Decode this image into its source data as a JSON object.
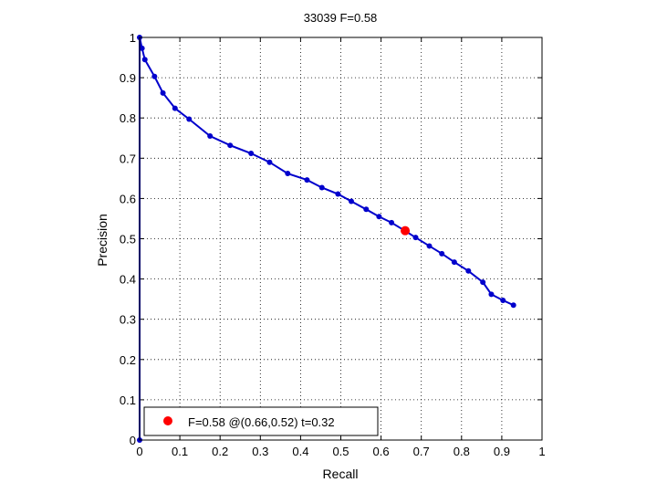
{
  "chart_data": {
    "type": "line",
    "title": "33039 F=0.58",
    "xlabel": "Recall",
    "ylabel": "Precision",
    "xlim": [
      0,
      1
    ],
    "ylim": [
      0,
      1
    ],
    "grid": true,
    "xticks": [
      "0",
      "0.1",
      "0.2",
      "0.3",
      "0.4",
      "0.5",
      "0.6",
      "0.7",
      "0.8",
      "0.9",
      "1"
    ],
    "yticks": [
      "0",
      "0.1",
      "0.2",
      "0.3",
      "0.4",
      "0.5",
      "0.6",
      "0.7",
      "0.8",
      "0.9",
      "1"
    ],
    "series": [
      {
        "color": "#0000cc",
        "x": [
          0.0,
          0.0,
          0.006,
          0.013,
          0.037,
          0.058,
          0.088,
          0.123,
          0.175,
          0.225,
          0.277,
          0.323,
          0.368,
          0.416,
          0.453,
          0.493,
          0.526,
          0.563,
          0.595,
          0.626,
          0.659,
          0.686,
          0.72,
          0.751,
          0.782,
          0.817,
          0.853,
          0.874,
          0.903,
          0.929
        ],
        "y": [
          0.0,
          1.0,
          0.973,
          0.945,
          0.903,
          0.862,
          0.824,
          0.797,
          0.755,
          0.732,
          0.712,
          0.69,
          0.662,
          0.646,
          0.627,
          0.611,
          0.593,
          0.573,
          0.555,
          0.54,
          0.52,
          0.503,
          0.482,
          0.463,
          0.442,
          0.42,
          0.392,
          0.362,
          0.347,
          0.335
        ]
      }
    ],
    "highlight_point": {
      "x": 0.66,
      "y": 0.52,
      "color": "#ff0000"
    },
    "legend": {
      "placement": "bottom-left",
      "label": "F=0.58 @(0.66,0.52) t=0.32"
    }
  }
}
